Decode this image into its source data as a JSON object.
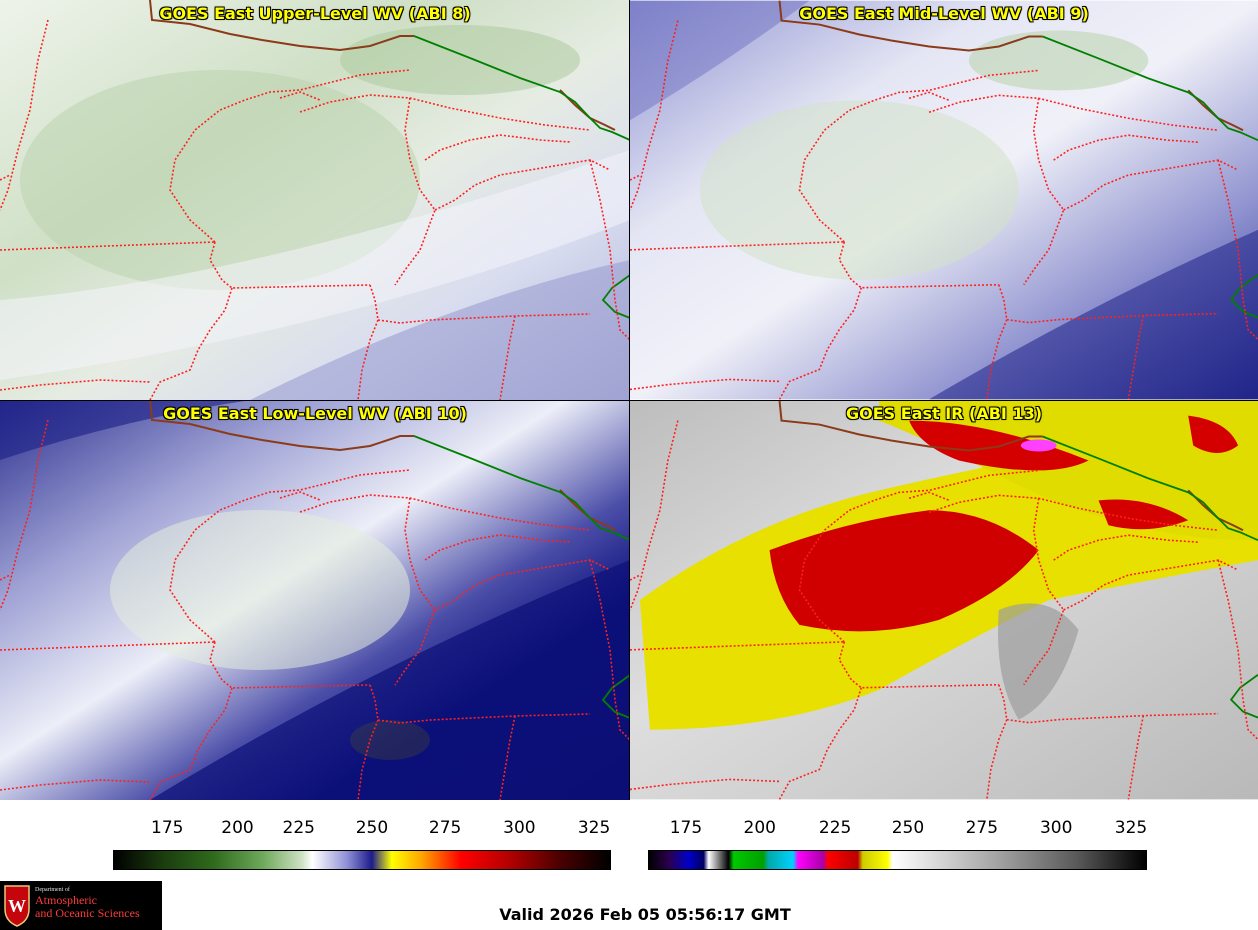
{
  "panels": {
    "upper_wv": {
      "title": "GOES East Upper-Level WV (ABI 8)"
    },
    "mid_wv": {
      "title": "GOES East Mid-Level WV (ABI 9)"
    },
    "low_wv": {
      "title": "GOES East Low-Level WV (ABI 10)"
    },
    "ir": {
      "title": "GOES East IR (ABI 13)"
    }
  },
  "colorbars": {
    "wv": {
      "ticks": [
        "175",
        "200",
        "225",
        "250",
        "275",
        "300",
        "325"
      ]
    },
    "ir": {
      "ticks": [
        "175",
        "200",
        "225",
        "250",
        "275",
        "300",
        "325"
      ]
    }
  },
  "logo": {
    "line1": "Department of",
    "line2": "Atmospheric",
    "line3": "and Oceanic Sciences",
    "crest_letter": "W"
  },
  "valid_time": "Valid 2026 Feb 05 05:56:17 GMT",
  "colors": {
    "title_text": "#ffff00",
    "state_borders": "#ff2020",
    "coastline": "#8b3a1a",
    "intl_border": "#008000",
    "logo_red": "#c5050c"
  }
}
